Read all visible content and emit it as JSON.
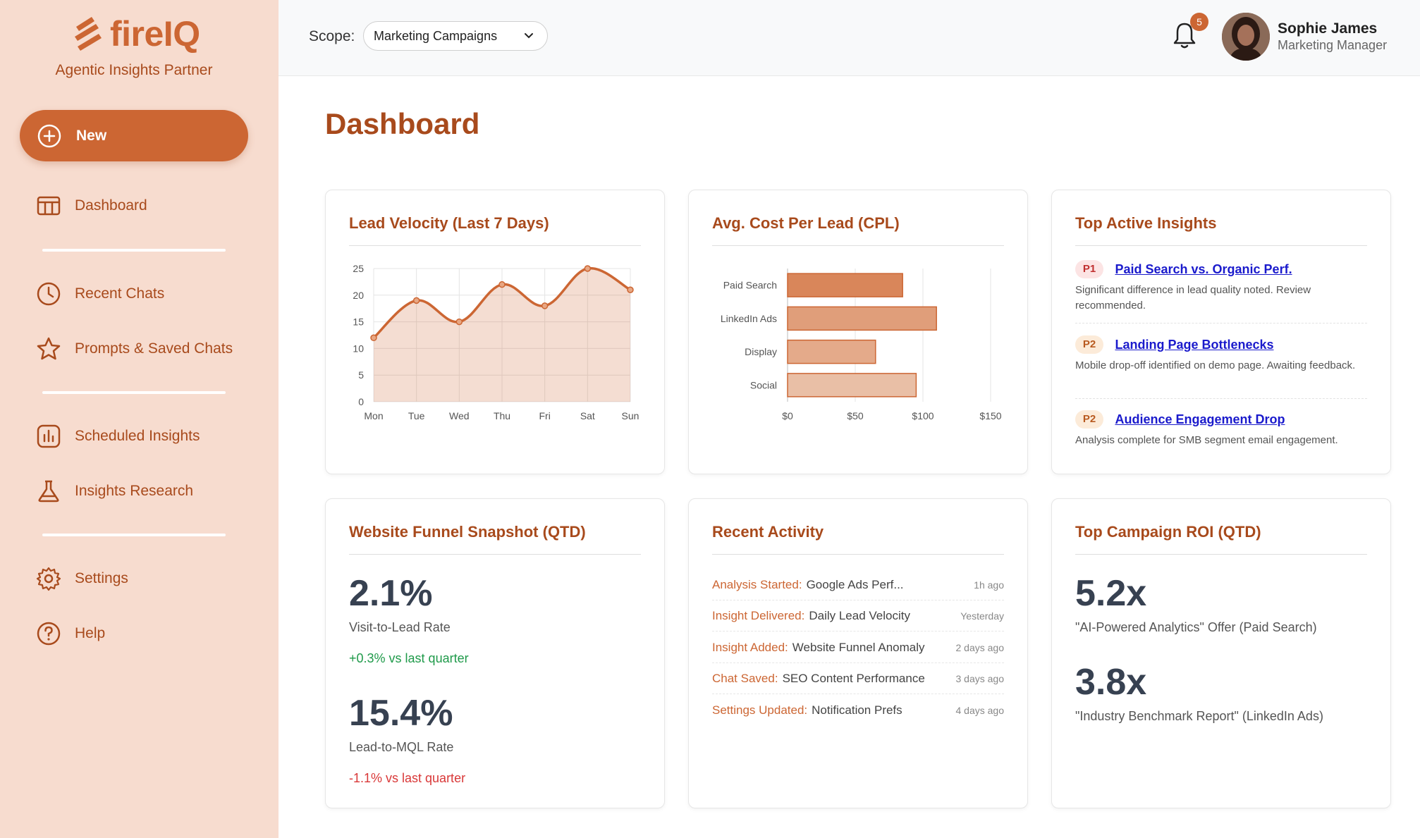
{
  "brand": {
    "name": "fireIQ",
    "tagline": "Agentic Insights Partner",
    "accent": "#cc6633",
    "accent_dark": "#a84a1c",
    "sidebar_bg": "#f7dccf"
  },
  "sidebar": {
    "new_label": "New",
    "items": [
      {
        "label": "Dashboard",
        "icon": "grid-icon"
      },
      {
        "label": "Recent Chats",
        "icon": "clock-icon"
      },
      {
        "label": "Prompts & Saved Chats",
        "icon": "star-icon"
      },
      {
        "label": "Scheduled Insights",
        "icon": "bar-chart-icon"
      },
      {
        "label": "Insights Research",
        "icon": "flask-icon"
      },
      {
        "label": "Settings",
        "icon": "gear-icon"
      },
      {
        "label": "Help",
        "icon": "help-icon"
      }
    ]
  },
  "header": {
    "scope_label": "Scope:",
    "scope_value": "Marketing Campaigns",
    "notification_count": "5",
    "user_name": "Sophie James",
    "user_role": "Marketing Manager"
  },
  "page": {
    "title": "Dashboard"
  },
  "cards": {
    "lead_velocity": {
      "title": "Lead Velocity (Last 7 Days)"
    },
    "cpl": {
      "title": "Avg. Cost Per Lead (CPL)"
    },
    "insights": {
      "title": "Top Active Insights",
      "items": [
        {
          "priority": "P1",
          "title": "Paid Search vs. Organic Perf.",
          "desc": "Significant difference in lead quality noted. Review recommended."
        },
        {
          "priority": "P2",
          "title": "Landing Page Bottlenecks",
          "desc": "Mobile drop-off identified on demo page. Awaiting feedback."
        },
        {
          "priority": "P2",
          "title": "Audience Engagement Drop",
          "desc": "Analysis complete for SMB segment email engagement."
        }
      ]
    },
    "funnel": {
      "title": "Website Funnel Snapshot (QTD)",
      "stats": [
        {
          "value": "2.1%",
          "label": "Visit-to-Lead Rate",
          "delta": "+0.3% vs last quarter"
        },
        {
          "value": "15.4%",
          "label": "Lead-to-MQL Rate",
          "delta": "-1.1% vs last quarter"
        }
      ]
    },
    "activity": {
      "title": "Recent Activity",
      "rows": [
        {
          "type": "Analysis Started:",
          "name": "Google Ads Perf...",
          "time": "1h ago"
        },
        {
          "type": "Insight Delivered:",
          "name": "Daily Lead Velocity",
          "time": "Yesterday"
        },
        {
          "type": "Insight Added:",
          "name": "Website Funnel Anomaly",
          "time": "2 days ago"
        },
        {
          "type": "Chat Saved:",
          "name": "SEO Content Performance",
          "time": "3 days ago"
        },
        {
          "type": "Settings Updated:",
          "name": "Notification Prefs",
          "time": "4 days ago"
        }
      ]
    },
    "roi": {
      "title": "Top Campaign ROI (QTD)",
      "stats": [
        {
          "value": "5.2x",
          "label": "\"AI-Powered Analytics\" Offer (Paid Search)"
        },
        {
          "value": "3.8x",
          "label": "\"Industry Benchmark Report\" (LinkedIn Ads)"
        }
      ]
    }
  },
  "chart_data": [
    {
      "type": "area",
      "title": "Lead Velocity (Last 7 Days)",
      "categories": [
        "Mon",
        "Tue",
        "Wed",
        "Thu",
        "Fri",
        "Sat",
        "Sun"
      ],
      "values": [
        12,
        19,
        15,
        22,
        18,
        25,
        21
      ],
      "ylim": [
        0,
        25
      ],
      "yticks": [
        "0",
        "5",
        "10",
        "15",
        "20",
        "25"
      ],
      "grid": true,
      "color": "#cc6633"
    },
    {
      "type": "bar",
      "orientation": "horizontal",
      "title": "Avg. Cost Per Lead (CPL)",
      "categories": [
        "Paid Search",
        "LinkedIn Ads",
        "Display",
        "Social"
      ],
      "values": [
        85,
        110,
        65,
        95
      ],
      "xlim": [
        0,
        150
      ],
      "xticks": [
        "$0",
        "$50",
        "$100",
        "$150"
      ],
      "grid": true,
      "colors": [
        "#d9865a",
        "#e09e7a",
        "#e4aa8a",
        "#e9bfa6"
      ]
    }
  ]
}
